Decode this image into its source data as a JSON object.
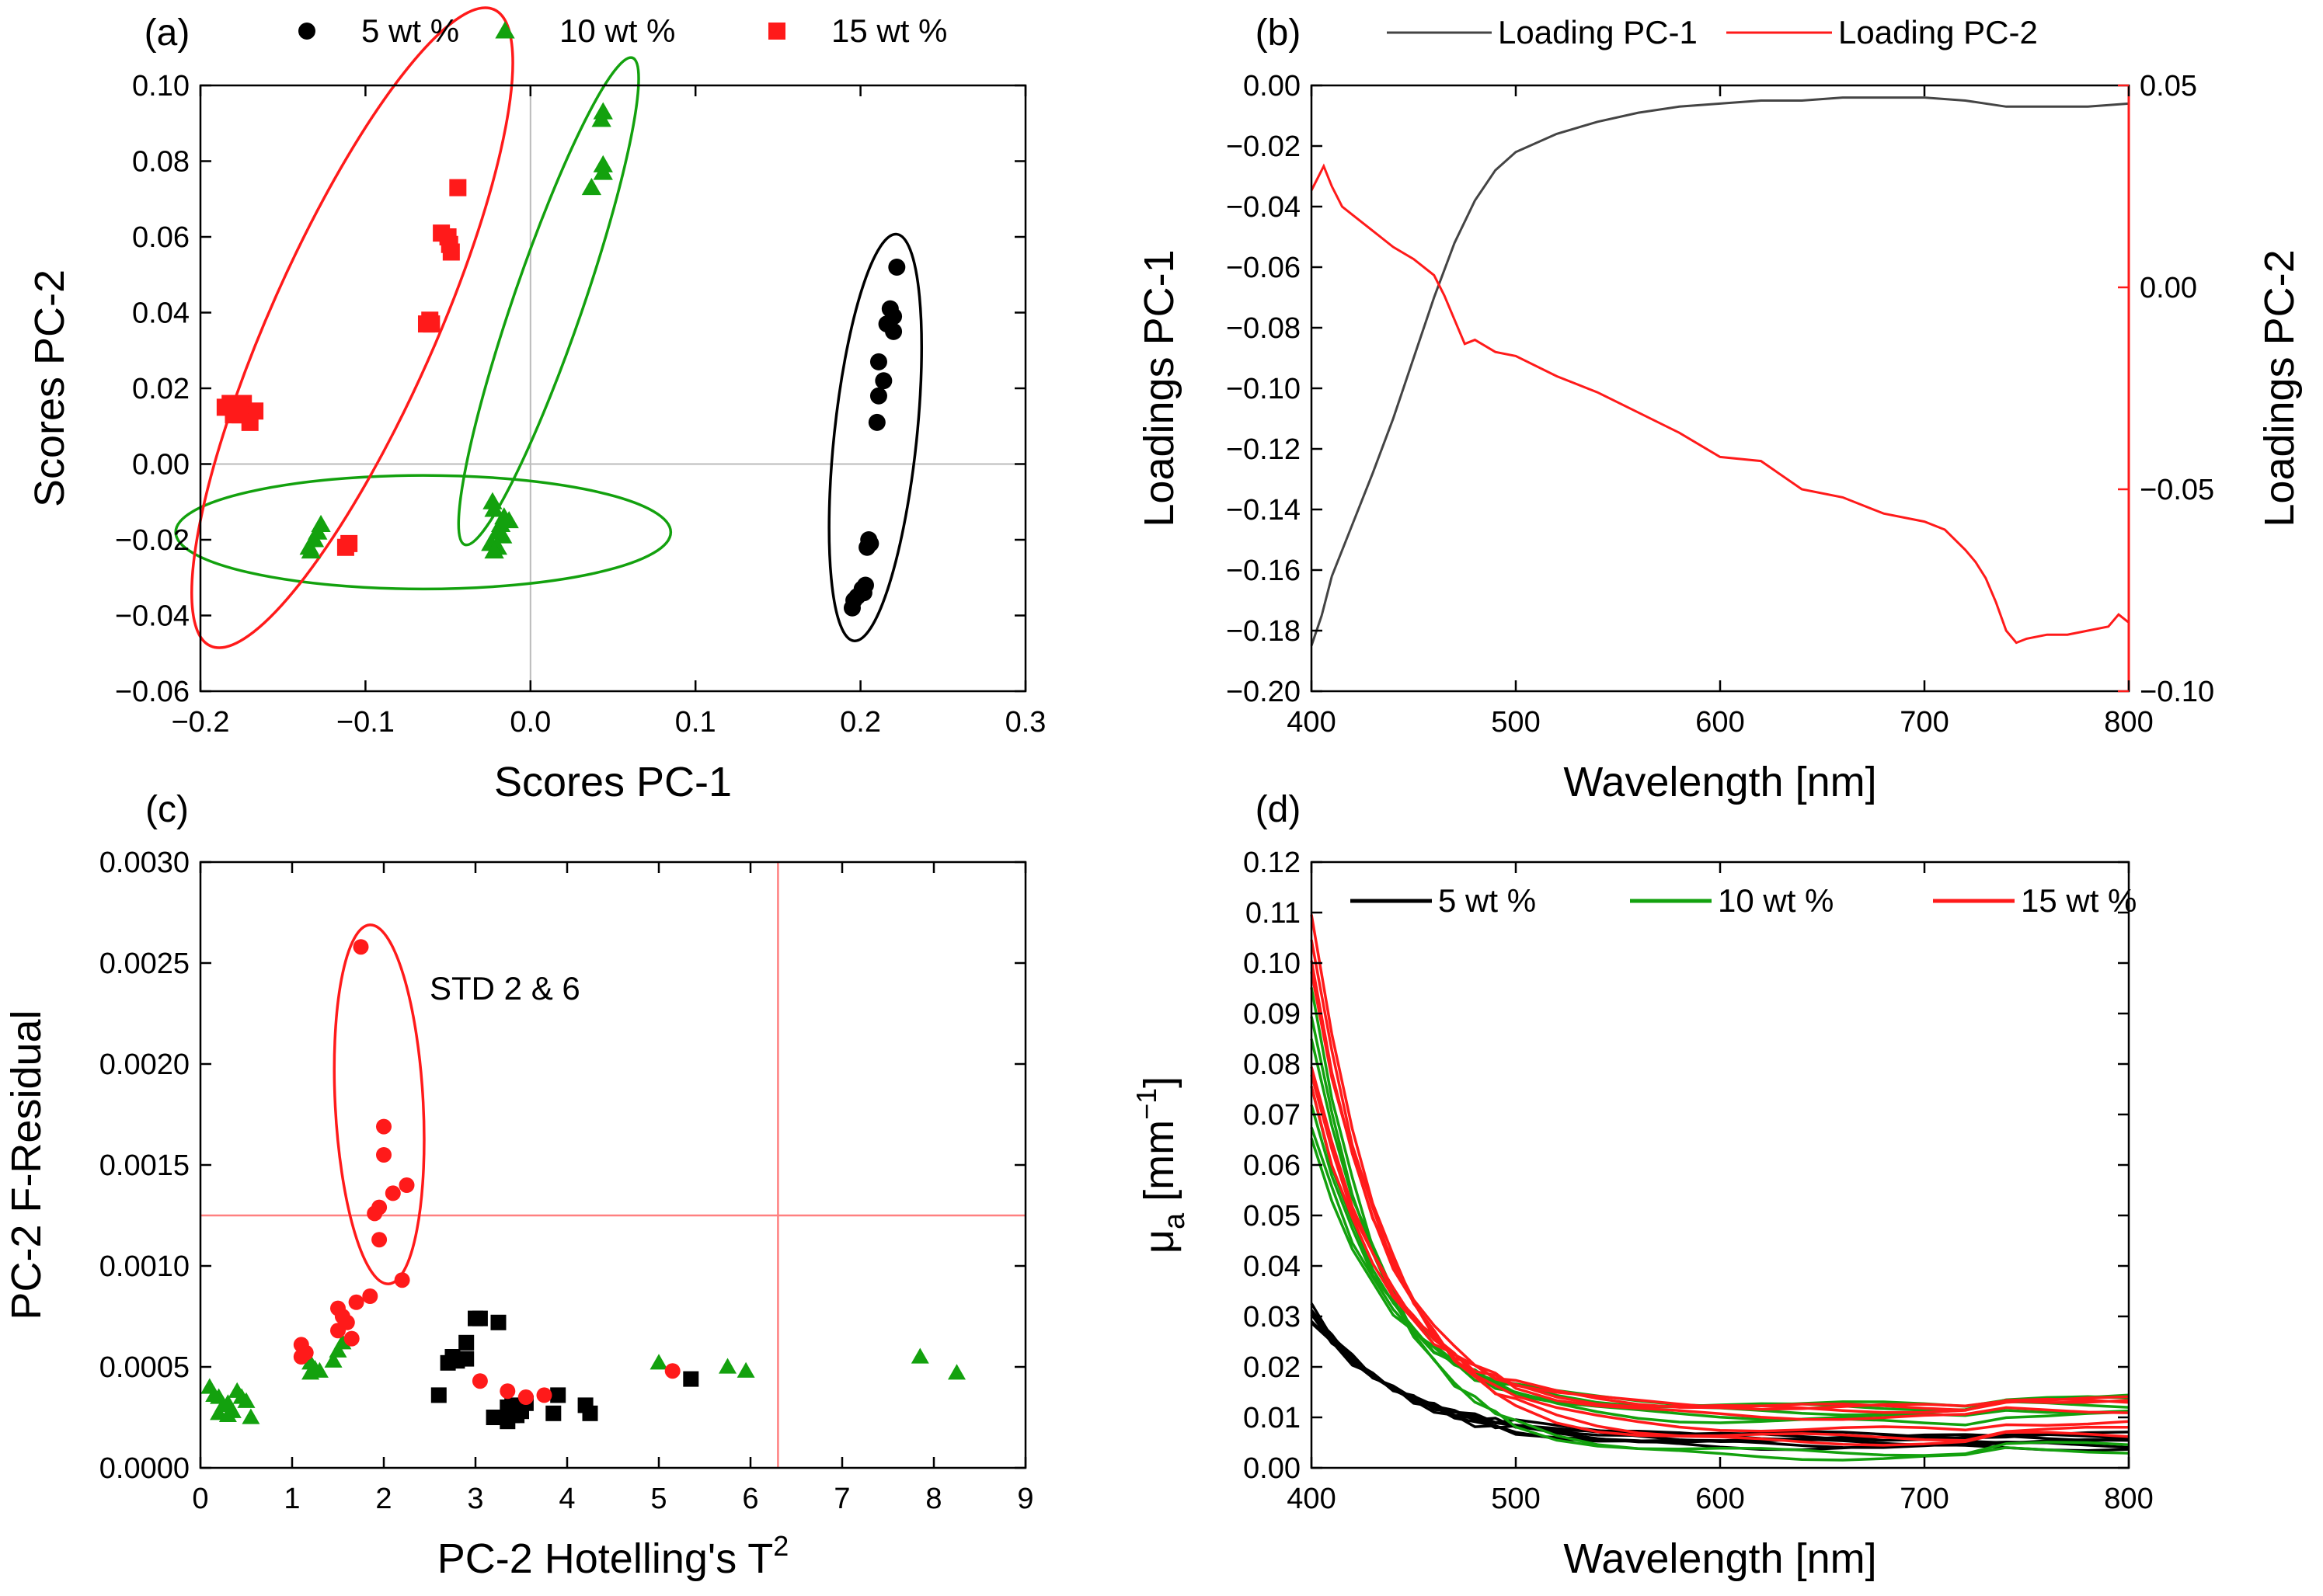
{
  "colors": {
    "black": "#000000",
    "green": "#13a10e",
    "red": "#ff1a1a",
    "dark": "#444444",
    "grid": "#bbbbbb",
    "thresh": "#ff8080"
  },
  "chart_data": [
    {
      "id": "a",
      "type": "scatter",
      "panel_label": "(a)",
      "xlabel": "Scores PC-1",
      "ylabel": "Scores PC-2",
      "xlim": [
        -0.2,
        0.3
      ],
      "ylim": [
        -0.06,
        0.1
      ],
      "xticks": [
        -0.2,
        -0.1,
        0.0,
        0.1,
        0.2,
        0.3
      ],
      "yticks": [
        -0.06,
        -0.04,
        -0.02,
        0.0,
        0.02,
        0.04,
        0.06,
        0.08,
        0.1
      ],
      "xtick_labels": [
        "−0.2",
        "−0.1",
        "0.0",
        "0.1",
        "0.2",
        "0.3"
      ],
      "ytick_labels": [
        "−0.06",
        "−0.04",
        "−0.02",
        "0.00",
        "0.02",
        "0.04",
        "0.06",
        "0.08",
        "0.10"
      ],
      "legend": [
        "5 wt %",
        "10 wt %",
        "15 wt %"
      ],
      "series": [
        {
          "name": "5 wt %",
          "marker": "circle",
          "color": "#000000",
          "points": [
            [
              0.222,
              0.052
            ],
            [
              0.218,
              0.041
            ],
            [
              0.22,
              0.039
            ],
            [
              0.216,
              0.037
            ],
            [
              0.22,
              0.035
            ],
            [
              0.211,
              0.027
            ],
            [
              0.214,
              0.022
            ],
            [
              0.211,
              0.018
            ],
            [
              0.21,
              0.011
            ],
            [
              0.205,
              -0.02
            ],
            [
              0.206,
              -0.021
            ],
            [
              0.204,
              -0.022
            ],
            [
              0.203,
              -0.032
            ],
            [
              0.201,
              -0.033
            ],
            [
              0.202,
              -0.034
            ],
            [
              0.198,
              -0.035
            ],
            [
              0.196,
              -0.036
            ],
            [
              0.195,
              -0.038
            ]
          ]
        },
        {
          "name": "10 wt %",
          "marker": "triangle",
          "color": "#13a10e",
          "points": [
            [
              0.044,
              0.093
            ],
            [
              0.043,
              0.091
            ],
            [
              0.044,
              0.079
            ],
            [
              0.044,
              0.077
            ],
            [
              0.037,
              0.073
            ],
            [
              -0.023,
              -0.01
            ],
            [
              -0.022,
              -0.012
            ],
            [
              -0.016,
              -0.014
            ],
            [
              -0.018,
              -0.016
            ],
            [
              -0.013,
              -0.015
            ],
            [
              -0.02,
              -0.018
            ],
            [
              -0.017,
              -0.019
            ],
            [
              -0.024,
              -0.021
            ],
            [
              -0.02,
              -0.022
            ],
            [
              -0.022,
              -0.023
            ],
            [
              -0.127,
              -0.016
            ],
            [
              -0.129,
              -0.018
            ],
            [
              -0.131,
              -0.02
            ],
            [
              -0.134,
              -0.022
            ],
            [
              -0.133,
              -0.023
            ]
          ]
        },
        {
          "name": "15 wt %",
          "marker": "square",
          "color": "#ff1a1a",
          "points": [
            [
              -0.044,
              0.073
            ],
            [
              -0.054,
              0.061
            ],
            [
              -0.05,
              0.06
            ],
            [
              -0.049,
              0.058
            ],
            [
              -0.048,
              0.056
            ],
            [
              -0.061,
              0.038
            ],
            [
              -0.06,
              0.037
            ],
            [
              -0.063,
              0.037
            ],
            [
              -0.182,
              0.016
            ],
            [
              -0.178,
              0.016
            ],
            [
              -0.174,
              0.016
            ],
            [
              -0.185,
              0.015
            ],
            [
              -0.167,
              0.014
            ],
            [
              -0.18,
              0.014
            ],
            [
              -0.176,
              0.013
            ],
            [
              -0.18,
              0.013
            ],
            [
              -0.17,
              0.011
            ],
            [
              -0.11,
              -0.021
            ],
            [
              -0.112,
              -0.022
            ]
          ]
        }
      ],
      "ellipses": [
        {
          "color": "#000000",
          "cx": 0.209,
          "cy": 0.007,
          "rx": 0.025,
          "ry": 0.054,
          "rotate": 6
        },
        {
          "color": "#13a10e",
          "cx": 0.011,
          "cy": 0.043,
          "rx": 0.021,
          "ry": 0.068,
          "rotate": 19
        },
        {
          "color": "#13a10e",
          "cx": -0.065,
          "cy": -0.018,
          "rx": 0.15,
          "ry": 0.015,
          "rotate": 0
        },
        {
          "color": "#ff1a1a",
          "cx": -0.108,
          "cy": 0.036,
          "rx": 0.05,
          "ry": 0.092,
          "rotate": 24
        }
      ]
    },
    {
      "id": "b",
      "type": "line",
      "panel_label": "(b)",
      "xlabel": "Wavelength [nm]",
      "ylabel": "Loadings PC-1",
      "y2label": "Loadings PC-2",
      "xlim": [
        400,
        800
      ],
      "ylim": [
        -0.2,
        0.0
      ],
      "y2lim": [
        -0.1,
        0.05
      ],
      "xticks": [
        400,
        500,
        600,
        700,
        800
      ],
      "yticks": [
        -0.2,
        -0.18,
        -0.16,
        -0.14,
        -0.12,
        -0.1,
        -0.08,
        -0.06,
        -0.04,
        -0.02,
        0.0
      ],
      "y2ticks": [
        -0.1,
        -0.05,
        0.0,
        0.05
      ],
      "xtick_labels": [
        "400",
        "500",
        "600",
        "700",
        "800"
      ],
      "ytick_labels": [
        "−0.20",
        "−0.18",
        "−0.16",
        "−0.14",
        "−0.12",
        "−0.10",
        "−0.08",
        "−0.06",
        "−0.04",
        "−0.02",
        "0.00"
      ],
      "y2tick_labels": [
        "−0.10",
        "−0.05",
        "0.00",
        "0.05"
      ],
      "legend": [
        "Loading PC-1",
        "Loading PC-2"
      ],
      "series": [
        {
          "name": "Loading PC-1",
          "color": "#444444",
          "axis": "left",
          "x": [
            400,
            405,
            410,
            420,
            430,
            440,
            450,
            460,
            470,
            480,
            490,
            500,
            520,
            540,
            560,
            580,
            600,
            620,
            640,
            660,
            680,
            700,
            720,
            740,
            760,
            780,
            800
          ],
          "y": [
            -0.185,
            -0.175,
            -0.162,
            -0.145,
            -0.128,
            -0.11,
            -0.09,
            -0.07,
            -0.052,
            -0.038,
            -0.028,
            -0.022,
            -0.016,
            -0.012,
            -0.009,
            -0.007,
            -0.006,
            -0.005,
            -0.005,
            -0.004,
            -0.004,
            -0.004,
            -0.005,
            -0.007,
            -0.007,
            -0.007,
            -0.006
          ]
        },
        {
          "name": "Loading PC-2",
          "color": "#ff1a1a",
          "axis": "right",
          "x": [
            400,
            403,
            406,
            410,
            415,
            420,
            430,
            440,
            450,
            460,
            465,
            470,
            475,
            480,
            490,
            500,
            520,
            540,
            560,
            580,
            600,
            620,
            640,
            660,
            680,
            700,
            710,
            720,
            725,
            730,
            735,
            740,
            745,
            750,
            760,
            770,
            780,
            790,
            795,
            800
          ],
          "y": [
            0.024,
            0.027,
            0.03,
            0.025,
            0.02,
            0.018,
            0.014,
            0.01,
            0.007,
            0.003,
            -0.002,
            -0.008,
            -0.014,
            -0.013,
            -0.016,
            -0.017,
            -0.022,
            -0.026,
            -0.031,
            -0.036,
            -0.042,
            -0.043,
            -0.05,
            -0.052,
            -0.056,
            -0.058,
            -0.06,
            -0.065,
            -0.068,
            -0.072,
            -0.078,
            -0.085,
            -0.088,
            -0.087,
            -0.086,
            -0.086,
            -0.085,
            -0.084,
            -0.081,
            -0.083
          ]
        }
      ]
    },
    {
      "id": "c",
      "type": "scatter",
      "panel_label": "(c)",
      "xlabel": "PC-2 Hotelling's T",
      "xlabel_sup": "2",
      "ylabel": "PC-2 F-Residual",
      "xlim": [
        0,
        9
      ],
      "ylim": [
        0,
        0.003
      ],
      "xticks": [
        0,
        1,
        2,
        3,
        4,
        5,
        6,
        7,
        8,
        9
      ],
      "yticks": [
        0.0,
        0.0005,
        0.001,
        0.0015,
        0.002,
        0.0025,
        0.003
      ],
      "xtick_labels": [
        "0",
        "1",
        "2",
        "3",
        "4",
        "5",
        "6",
        "7",
        "8",
        "9"
      ],
      "ytick_labels": [
        "0.0000",
        "0.0005",
        "0.0010",
        "0.0015",
        "0.0020",
        "0.0025",
        "0.0030"
      ],
      "threshold_x": 6.3,
      "threshold_y": 0.00125,
      "annotation": "STD 2 & 6",
      "annotation_at": [
        2.5,
        0.00232
      ],
      "ellipse": {
        "color": "#ff1a1a",
        "cx": 1.95,
        "cy": 0.0018,
        "rx": 0.48,
        "ry": 0.00089,
        "rotate": -3
      },
      "series": [
        {
          "name": "5 wt %",
          "marker": "square",
          "color": "#000000",
          "points": [
            [
              2.6,
              0.00036
            ],
            [
              2.7,
              0.00052
            ],
            [
              2.75,
              0.00055
            ],
            [
              2.8,
              0.00053
            ],
            [
              2.9,
              0.00062
            ],
            [
              3.0,
              0.00074
            ],
            [
              3.05,
              0.00074
            ],
            [
              3.25,
              0.00072
            ],
            [
              2.9,
              0.00054
            ],
            [
              3.2,
              0.00025
            ],
            [
              3.35,
              0.00023
            ],
            [
              3.35,
              0.0003
            ],
            [
              3.4,
              0.00031
            ],
            [
              3.45,
              0.00026
            ],
            [
              3.5,
              0.00028
            ],
            [
              3.55,
              0.00032
            ],
            [
              3.9,
              0.00036
            ],
            [
              3.85,
              0.00027
            ],
            [
              4.2,
              0.00031
            ],
            [
              4.25,
              0.00027
            ],
            [
              5.35,
              0.00044
            ],
            [
              3.4,
              0.00026
            ]
          ]
        },
        {
          "name": "10 wt %",
          "marker": "triangle",
          "color": "#13a10e",
          "points": [
            [
              0.1,
              0.0004
            ],
            [
              0.15,
              0.00036
            ],
            [
              0.2,
              0.00035
            ],
            [
              0.25,
              0.00031
            ],
            [
              0.2,
              0.00027
            ],
            [
              0.3,
              0.00032
            ],
            [
              0.35,
              0.00028
            ],
            [
              0.4,
              0.00038
            ],
            [
              0.45,
              0.00035
            ],
            [
              0.5,
              0.00033
            ],
            [
              0.55,
              0.00025
            ],
            [
              0.3,
              0.00026
            ],
            [
              1.15,
              0.00055
            ],
            [
              1.2,
              0.00052
            ],
            [
              1.25,
              0.00049
            ],
            [
              1.3,
              0.00048
            ],
            [
              1.45,
              0.00053
            ],
            [
              1.5,
              0.00058
            ],
            [
              1.55,
              0.00062
            ],
            [
              1.2,
              0.00047
            ],
            [
              5.0,
              0.00052
            ],
            [
              5.75,
              0.0005
            ],
            [
              5.95,
              0.00048
            ],
            [
              7.85,
              0.00055
            ],
            [
              8.25,
              0.00047
            ]
          ]
        },
        {
          "name": "15 wt %",
          "marker": "circle",
          "color": "#ff1a1a",
          "points": [
            [
              1.75,
              0.00258
            ],
            [
              2.0,
              0.00169
            ],
            [
              2.0,
              0.00155
            ],
            [
              1.95,
              0.00129
            ],
            [
              2.1,
              0.00136
            ],
            [
              2.25,
              0.0014
            ],
            [
              1.9,
              0.00126
            ],
            [
              1.95,
              0.00113
            ],
            [
              2.2,
              0.00093
            ],
            [
              1.85,
              0.00085
            ],
            [
              1.7,
              0.00082
            ],
            [
              1.5,
              0.00079
            ],
            [
              1.55,
              0.00075
            ],
            [
              1.6,
              0.00072
            ],
            [
              1.5,
              0.00068
            ],
            [
              1.65,
              0.00064
            ],
            [
              1.1,
              0.00061
            ],
            [
              1.1,
              0.00055
            ],
            [
              1.15,
              0.00057
            ],
            [
              3.05,
              0.00043
            ],
            [
              3.35,
              0.00038
            ],
            [
              3.55,
              0.00035
            ],
            [
              3.75,
              0.00036
            ],
            [
              5.15,
              0.00048
            ]
          ]
        }
      ]
    },
    {
      "id": "d",
      "type": "line",
      "panel_label": "(d)",
      "xlabel": "Wavelength [nm]",
      "ylabel_main": "μ",
      "ylabel_sub": "a",
      "ylabel_unit": " [mm",
      "ylabel_sup": "−1",
      "ylabel_end": "]",
      "xlim": [
        400,
        800
      ],
      "ylim": [
        0,
        0.12
      ],
      "xticks": [
        400,
        500,
        600,
        700,
        800
      ],
      "yticks": [
        0,
        0.01,
        0.02,
        0.03,
        0.04,
        0.05,
        0.06,
        0.07,
        0.08,
        0.09,
        0.1,
        0.11,
        0.12
      ],
      "xtick_labels": [
        "400",
        "500",
        "600",
        "700",
        "800"
      ],
      "ytick_labels": [
        "0.00",
        "0.01",
        "0.02",
        "0.03",
        "0.04",
        "0.05",
        "0.06",
        "0.07",
        "0.08",
        "0.09",
        "0.10",
        "0.11",
        "0.12"
      ],
      "legend": [
        "5 wt %",
        "10 wt %",
        "15 wt %"
      ],
      "x": [
        400,
        410,
        420,
        430,
        440,
        450,
        460,
        470,
        480,
        490,
        500,
        520,
        540,
        560,
        580,
        600,
        620,
        640,
        660,
        680,
        700,
        720,
        740,
        760,
        780,
        800
      ],
      "series": [
        {
          "name": "5 wt %",
          "color": "#000000",
          "start": [
            0.032,
            0.0315,
            0.031,
            0.0305,
            0.03,
            0.0295,
            0.029
          ],
          "end": [
            0.004,
            0.0045,
            0.005,
            0.0055,
            0.006,
            0.006,
            0.0065
          ]
        },
        {
          "name": "10 wt %",
          "color": "#13a10e",
          "start": [
            0.095,
            0.09,
            0.085,
            0.075,
            0.072,
            0.068,
            0.065
          ],
          "end": [
            0.002,
            0.003,
            0.009,
            0.01,
            0.011,
            0.012,
            0.0125
          ]
        },
        {
          "name": "15 wt %",
          "color": "#ff1a1a",
          "start": [
            0.11,
            0.105,
            0.1,
            0.098,
            0.08,
            0.078,
            0.075
          ],
          "end": [
            0.005,
            0.006,
            0.0075,
            0.01,
            0.0115,
            0.012,
            0.012
          ]
        }
      ]
    }
  ]
}
